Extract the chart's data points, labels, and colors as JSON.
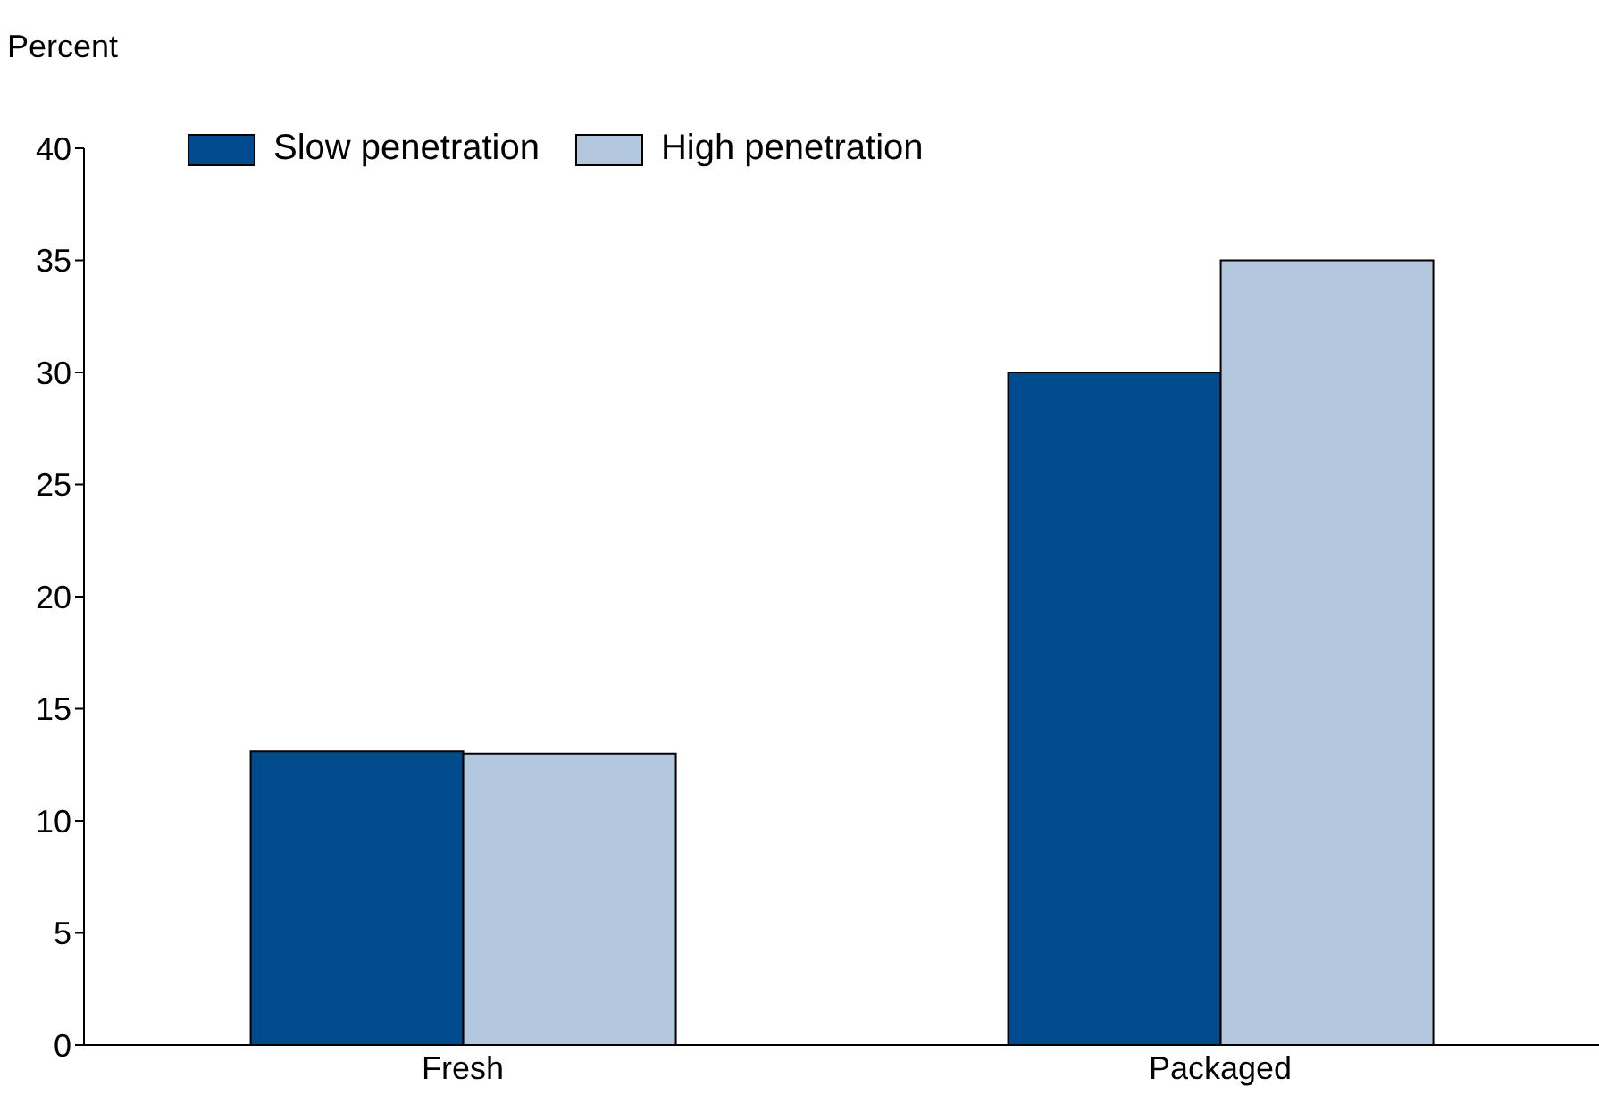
{
  "chart_data": {
    "type": "bar",
    "ylabel": "Percent",
    "categories": [
      "Fresh",
      "Packaged"
    ],
    "series": [
      {
        "name": "Slow penetration",
        "color": "#004b8d",
        "values": [
          13.1,
          30
        ]
      },
      {
        "name": "High penetration",
        "color": "#b3c8de",
        "values": [
          13,
          35
        ]
      }
    ],
    "ylim": [
      0,
      40
    ],
    "yticks": [
      0,
      5,
      10,
      15,
      20,
      25,
      30,
      35,
      40
    ],
    "grid": false,
    "legend": "top left"
  }
}
